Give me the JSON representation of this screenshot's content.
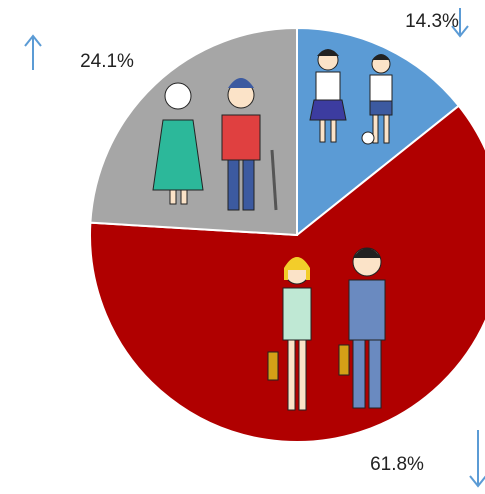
{
  "chart_data": {
    "type": "pie",
    "categories": [
      null,
      null,
      null
    ],
    "values": [
      14.3,
      61.8,
      24.1
    ],
    "value_labels": [
      "14.3%",
      "61.8%",
      "24.1%"
    ],
    "colors": [
      "#5b9bd5",
      "#b00000",
      "#a6a6a6"
    ]
  }
}
